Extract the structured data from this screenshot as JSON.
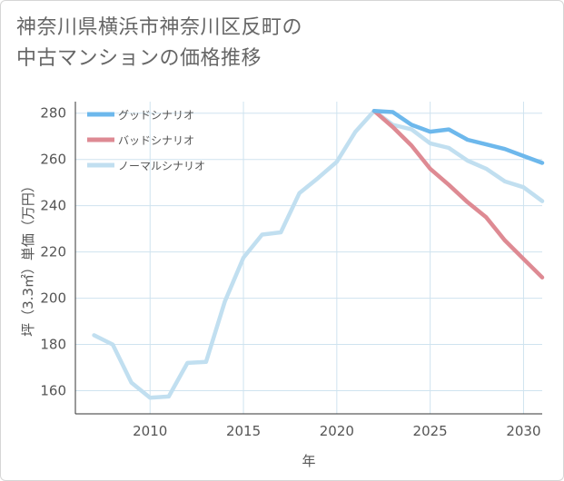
{
  "header": {
    "title_line1": "神奈川県横浜市神奈川区反町の",
    "title_line2": "中古マンションの価格推移"
  },
  "colors": {
    "good": "#6db8ec",
    "bad": "#de8a93",
    "normal": "#c1dff0",
    "grid": "#cfe3ef",
    "axis": "#333333"
  },
  "chart_data": {
    "type": "line",
    "title": "神奈川県横浜市神奈川区反町の中古マンションの価格推移",
    "xlabel": "年",
    "ylabel": "坪（3.3㎡）単価（万円）",
    "xlim": [
      2006,
      2031
    ],
    "ylim": [
      150,
      285
    ],
    "x_ticks": [
      2010,
      2015,
      2020,
      2025,
      2030
    ],
    "y_ticks": [
      160,
      180,
      200,
      220,
      240,
      260,
      280
    ],
    "grid": true,
    "legend_position": "top-left",
    "series": [
      {
        "name": "グッドシナリオ",
        "color": "#6db8ec",
        "points": [
          [
            2022,
            281
          ],
          [
            2023,
            280.5
          ],
          [
            2024,
            275
          ],
          [
            2025,
            272
          ],
          [
            2026,
            273
          ],
          [
            2027,
            268.5
          ],
          [
            2028,
            266.5
          ],
          [
            2029,
            264.5
          ],
          [
            2030,
            261.5
          ],
          [
            2031,
            258.5
          ]
        ]
      },
      {
        "name": "バッドシナリオ",
        "color": "#de8a93",
        "points": [
          [
            2022,
            281
          ],
          [
            2023,
            274
          ],
          [
            2024,
            266
          ],
          [
            2025,
            256
          ],
          [
            2026,
            249
          ],
          [
            2027,
            241.5
          ],
          [
            2028,
            235
          ],
          [
            2029,
            225
          ],
          [
            2030,
            217
          ],
          [
            2031,
            209
          ]
        ]
      },
      {
        "name": "ノーマルシナリオ",
        "color": "#c1dff0",
        "points": [
          [
            2007,
            184
          ],
          [
            2008,
            180
          ],
          [
            2009,
            163.5
          ],
          [
            2010,
            157
          ],
          [
            2011,
            157.5
          ],
          [
            2012,
            172
          ],
          [
            2013,
            172.5
          ],
          [
            2014,
            198.5
          ],
          [
            2015,
            217.5
          ],
          [
            2016,
            227.5
          ],
          [
            2017,
            228.5
          ],
          [
            2018,
            245.5
          ],
          [
            2019,
            252
          ],
          [
            2020,
            259
          ],
          [
            2021,
            272
          ],
          [
            2022,
            281
          ],
          [
            2023,
            275
          ],
          [
            2024,
            273
          ],
          [
            2025,
            267
          ],
          [
            2026,
            265
          ],
          [
            2027,
            259.5
          ],
          [
            2028,
            256
          ],
          [
            2029,
            250.5
          ],
          [
            2030,
            248
          ],
          [
            2031,
            242
          ]
        ]
      }
    ]
  }
}
